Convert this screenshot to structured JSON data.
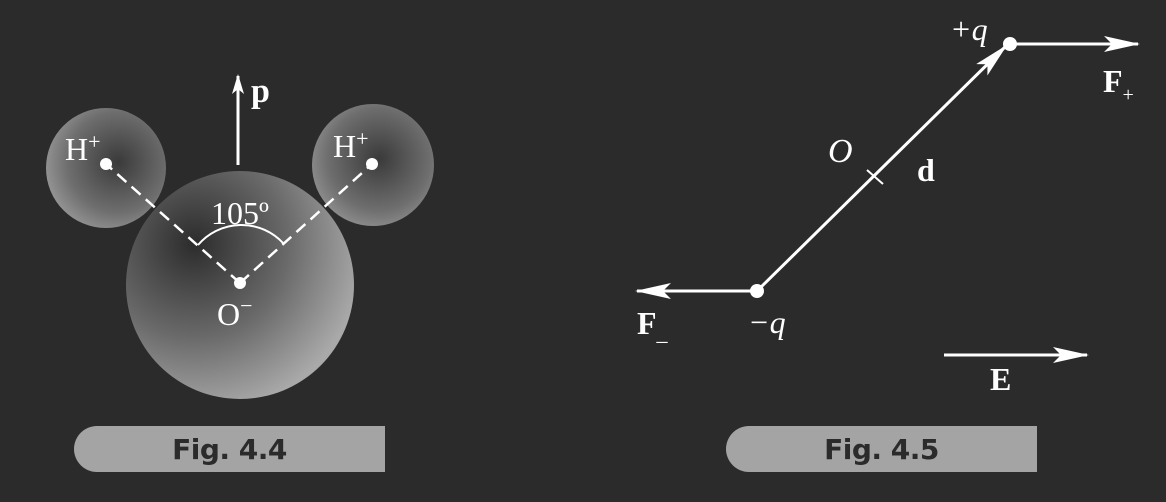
{
  "figure_4_4": {
    "caption": "Fig. 4.4",
    "hydrogen_left": "H",
    "hydrogen_right": "H",
    "hydrogen_charge": "+",
    "oxygen": "O",
    "oxygen_charge": "−",
    "angle": "105º",
    "dipole_label": "p"
  },
  "figure_4_5": {
    "caption": "Fig. 4.5",
    "positive_charge": "+q",
    "negative_charge": "−q",
    "force_plus": "F",
    "force_plus_sub": "+",
    "force_minus": "F",
    "force_minus_sub": "_",
    "origin_label": "O",
    "dipole_vector": "d",
    "field_label": "E"
  },
  "colors": {
    "background": "#2b2b2b",
    "lines": "#ffffff",
    "caption_tab": "#a4a4a4",
    "caption_text": "#2b2b2b"
  }
}
